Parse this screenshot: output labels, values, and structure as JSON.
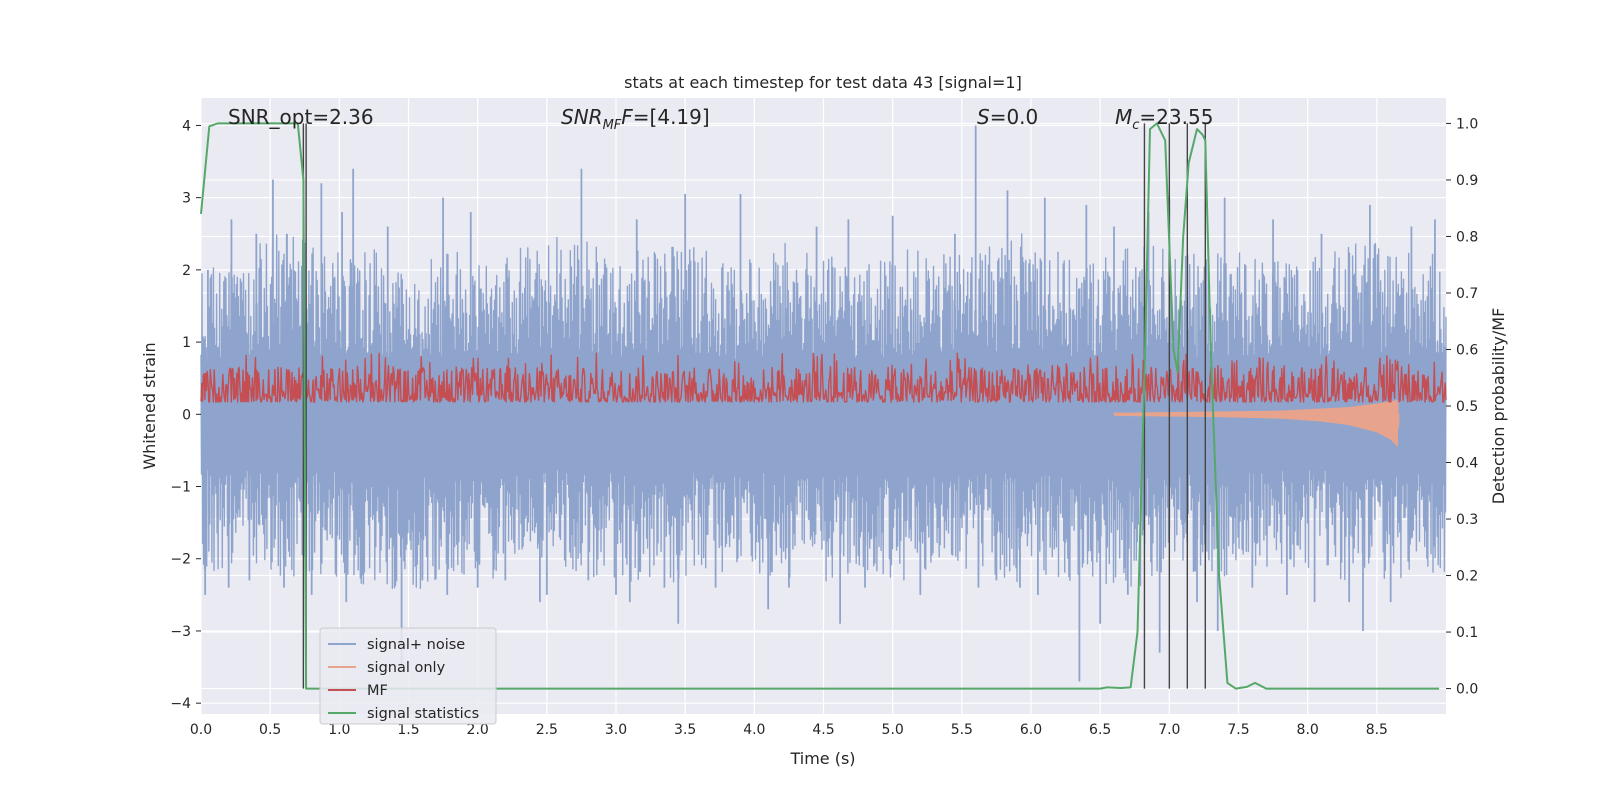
{
  "chart_data": {
    "type": "line",
    "title": "stats at each timestep for test data 43 [signal=1]",
    "xlabel": "Time (s)",
    "ylabel_left": "Whitened strain",
    "ylabel_right": "Detection probability/MF",
    "xlim": [
      0.0,
      9.0
    ],
    "ylim_left": [
      -4.15,
      4.38
    ],
    "ylim_right": [
      -0.045,
      1.045
    ],
    "x_ticks": [
      "0.0",
      "0.5",
      "1.0",
      "1.5",
      "2.0",
      "2.5",
      "3.0",
      "3.5",
      "4.0",
      "4.5",
      "5.0",
      "5.5",
      "6.0",
      "6.5",
      "7.0",
      "7.5",
      "8.0",
      "8.5"
    ],
    "y_ticks_left": [
      "4",
      "3",
      "2",
      "1",
      "0",
      "−1",
      "−2",
      "−3",
      "−4"
    ],
    "y_ticks_right": [
      "1.0",
      "0.9",
      "0.8",
      "0.7",
      "0.6",
      "0.5",
      "0.4",
      "0.3",
      "0.2",
      "0.1",
      "0.0"
    ],
    "grid": true,
    "legend_position": "lower-left",
    "annotations": {
      "snr_opt": "SNR_opt=2.36",
      "snr_mf_var": "SNR",
      "snr_mf_sub": "MF",
      "snr_mf_val": "=[4.19]",
      "s_var": "S",
      "s_val": "=0.0",
      "mc_var": "M",
      "mc_sub": "c",
      "mc_val": "=23.55"
    },
    "vertical_markers_x": [
      0.74,
      0.76,
      6.82,
      7.0,
      7.13,
      7.26
    ],
    "series": [
      {
        "name": "signal+ noise",
        "axis": "left",
        "color": "#8fa4cc",
        "envelope": {
          "x": [
            0,
            0.3,
            0.6,
            0.9,
            1.2,
            1.5,
            1.8,
            2.1,
            2.4,
            2.7,
            3.0,
            3.3,
            3.6,
            3.9,
            4.2,
            4.5,
            4.8,
            5.1,
            5.4,
            5.7,
            6.0,
            6.3,
            6.6,
            6.9,
            7.2,
            7.5,
            7.8,
            8.1,
            8.4,
            8.7,
            9.0
          ],
          "upper": [
            2.0,
            2.2,
            2.6,
            2.2,
            2.4,
            2.0,
            2.3,
            2.1,
            2.4,
            2.5,
            2.2,
            2.4,
            2.3,
            2.1,
            2.4,
            2.2,
            2.1,
            2.3,
            2.2,
            2.4,
            2.6,
            2.1,
            2.3,
            2.4,
            2.2,
            2.3,
            2.1,
            2.2,
            2.4,
            2.3,
            2.2
          ],
          "lower": [
            -2.2,
            -2.1,
            -2.3,
            -2.2,
            -2.4,
            -2.5,
            -2.2,
            -2.3,
            -2.1,
            -2.2,
            -2.3,
            -2.4,
            -2.2,
            -2.2,
            -2.3,
            -2.4,
            -2.2,
            -2.3,
            -2.1,
            -2.2,
            -2.4,
            -2.3,
            -2.5,
            -2.3,
            -2.2,
            -2.3,
            -2.1,
            -2.2,
            -2.4,
            -2.3,
            -2.2
          ]
        },
        "spikes": [
          [
            0.03,
            -2.5
          ],
          [
            0.05,
            2.0
          ],
          [
            0.2,
            -2.4
          ],
          [
            0.22,
            2.7
          ],
          [
            0.35,
            -2.3
          ],
          [
            0.4,
            2.5
          ],
          [
            0.52,
            3.25
          ],
          [
            0.6,
            -2.4
          ],
          [
            0.62,
            2.5
          ],
          [
            0.8,
            -2.5
          ],
          [
            0.87,
            3.2
          ],
          [
            1.02,
            2.8
          ],
          [
            1.05,
            -2.6
          ],
          [
            1.1,
            3.4
          ],
          [
            1.35,
            2.6
          ],
          [
            1.45,
            -3.5
          ],
          [
            1.6,
            -2.3
          ],
          [
            1.75,
            3.0
          ],
          [
            1.78,
            -2.5
          ],
          [
            1.95,
            2.8
          ],
          [
            2.0,
            -2.4
          ],
          [
            2.2,
            -2.3
          ],
          [
            2.45,
            -2.6
          ],
          [
            2.5,
            -2.5
          ],
          [
            2.75,
            3.4
          ],
          [
            2.8,
            -2.3
          ],
          [
            3.0,
            -2.5
          ],
          [
            3.1,
            -2.6
          ],
          [
            3.15,
            2.7
          ],
          [
            3.35,
            -2.4
          ],
          [
            3.45,
            -2.9
          ],
          [
            3.5,
            3.05
          ],
          [
            3.72,
            -2.4
          ],
          [
            3.9,
            3.05
          ],
          [
            4.1,
            -2.7
          ],
          [
            4.25,
            -2.4
          ],
          [
            4.45,
            2.6
          ],
          [
            4.62,
            -2.9
          ],
          [
            4.68,
            2.7
          ],
          [
            4.8,
            -2.4
          ],
          [
            5.0,
            2.75
          ],
          [
            5.2,
            -2.5
          ],
          [
            5.45,
            2.5
          ],
          [
            5.6,
            4.0
          ],
          [
            5.62,
            -2.4
          ],
          [
            5.75,
            -2.3
          ],
          [
            5.83,
            3.1
          ],
          [
            5.92,
            -2.4
          ],
          [
            6.05,
            -2.5
          ],
          [
            6.1,
            3.0
          ],
          [
            6.35,
            -3.7
          ],
          [
            6.4,
            2.9
          ],
          [
            6.5,
            -2.9
          ],
          [
            6.6,
            2.6
          ],
          [
            6.7,
            -2.5
          ],
          [
            6.85,
            2.8
          ],
          [
            6.93,
            -3.3
          ],
          [
            7.0,
            3.0
          ],
          [
            7.2,
            -2.6
          ],
          [
            7.35,
            -3.0
          ],
          [
            7.4,
            3.0
          ],
          [
            7.6,
            -2.4
          ],
          [
            7.75,
            2.7
          ],
          [
            7.85,
            -2.5
          ],
          [
            8.05,
            -2.6
          ],
          [
            8.1,
            2.5
          ],
          [
            8.3,
            -2.6
          ],
          [
            8.4,
            -3.0
          ],
          [
            8.45,
            2.9
          ],
          [
            8.6,
            -2.6
          ],
          [
            8.75,
            2.6
          ],
          [
            8.92,
            2.7
          ]
        ]
      },
      {
        "name": "signal only",
        "axis": "left",
        "color": "#e8a38c",
        "envelope": {
          "x": [
            6.6,
            7.0,
            7.4,
            7.8,
            8.1,
            8.3,
            8.5,
            8.6,
            8.65,
            8.66
          ],
          "upper": [
            0.02,
            0.03,
            0.04,
            0.05,
            0.08,
            0.1,
            0.15,
            0.18,
            0.2,
            0.0
          ],
          "lower": [
            -0.02,
            -0.03,
            -0.04,
            -0.06,
            -0.1,
            -0.15,
            -0.25,
            -0.35,
            -0.45,
            0.0
          ]
        }
      },
      {
        "name": "MF",
        "axis": "left",
        "color": "#c44e52",
        "baseline": 0.3,
        "band": [
          0.05,
          0.85
        ]
      },
      {
        "name": "signal statistics",
        "axis": "right",
        "color": "#55a868",
        "x": [
          0.0,
          0.06,
          0.12,
          0.2,
          0.3,
          0.4,
          0.5,
          0.6,
          0.7,
          0.74,
          0.76,
          0.82,
          0.9,
          1.0,
          2.0,
          3.0,
          4.0,
          5.0,
          6.0,
          6.5,
          6.55,
          6.65,
          6.72,
          6.77,
          6.82,
          6.86,
          6.91,
          6.97,
          7.03,
          7.06,
          7.1,
          7.14,
          7.2,
          7.24,
          7.26,
          7.3,
          7.36,
          7.42,
          7.48,
          7.56,
          7.62,
          7.7,
          7.8,
          8.0,
          8.5,
          8.95
        ],
        "y": [
          0.84,
          0.995,
          1.0,
          1.0,
          1.0,
          1.0,
          1.0,
          1.0,
          1.0,
          0.9,
          0.0,
          0.0,
          0.0,
          0.0,
          0.0,
          0.0,
          0.0,
          0.0,
          0.0,
          0.0,
          0.002,
          0.001,
          0.002,
          0.1,
          0.55,
          0.99,
          1.0,
          0.97,
          0.6,
          0.56,
          0.8,
          0.93,
          0.99,
          0.98,
          0.97,
          0.6,
          0.2,
          0.01,
          0.0,
          0.003,
          0.01,
          0.0,
          0.0,
          0.0,
          0.0,
          0.0
        ]
      }
    ]
  }
}
